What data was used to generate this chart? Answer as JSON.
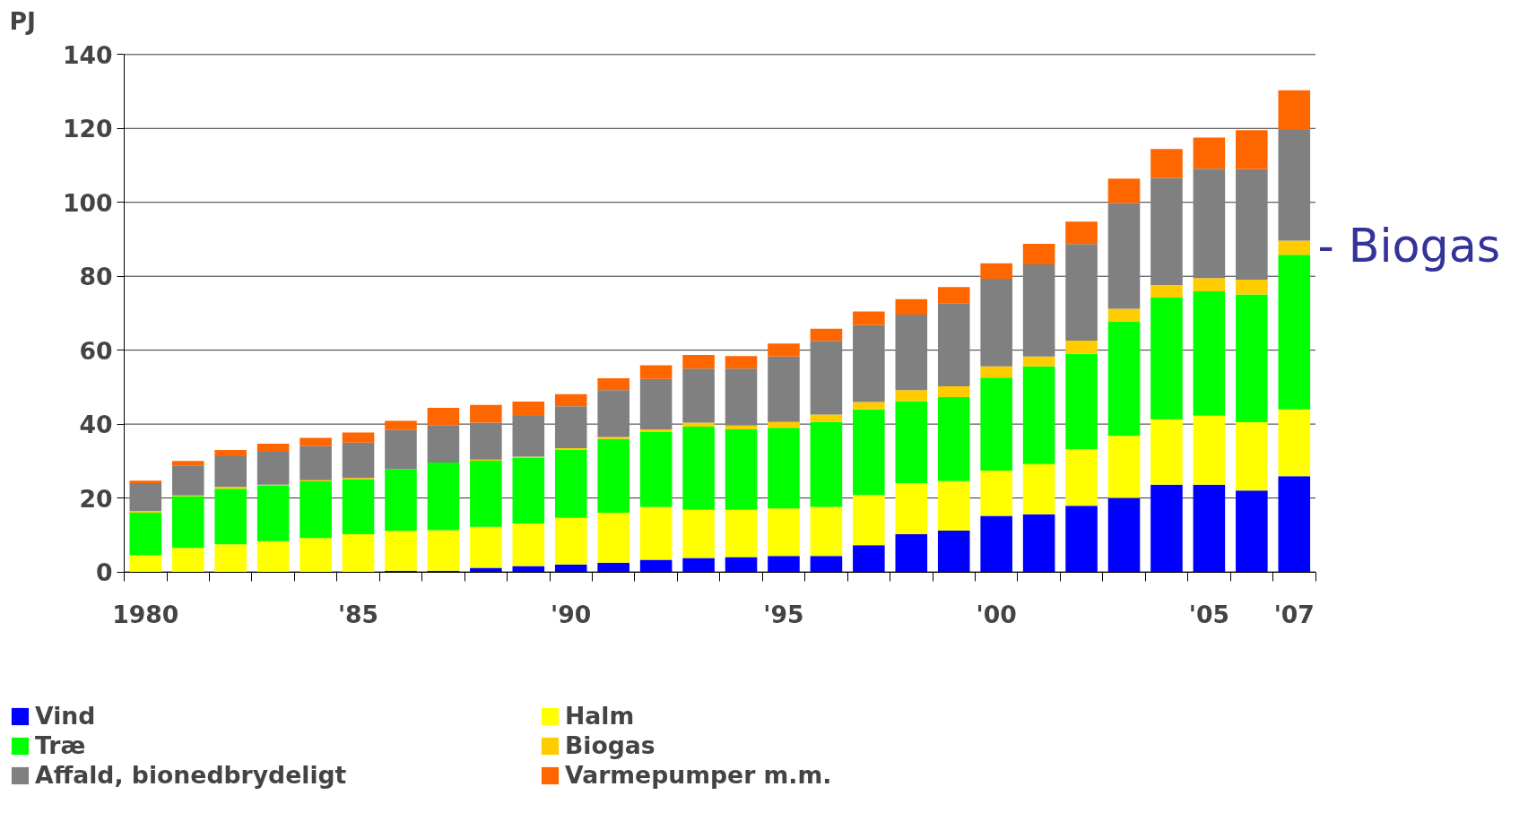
{
  "chart_data": {
    "type": "bar",
    "stacked": true,
    "ylabel": "PJ",
    "categories": [
      "1980",
      null,
      null,
      null,
      null,
      "'85",
      null,
      null,
      null,
      null,
      "'90",
      null,
      null,
      null,
      null,
      "'95",
      null,
      null,
      null,
      null,
      "'00",
      null,
      null,
      null,
      null,
      "'05",
      null,
      "'07"
    ],
    "series": [
      {
        "name": "Vind",
        "color": "#0000ff",
        "values": [
          0,
          0,
          0,
          0,
          0,
          0,
          0.3,
          0.3,
          1.1,
          1.6,
          2,
          2.5,
          3.3,
          3.8,
          4,
          4.3,
          4.3,
          7.2,
          10.2,
          11.2,
          15.2,
          15.6,
          17.9,
          20,
          23.6,
          23.6,
          22,
          25.9
        ]
      },
      {
        "name": "Halm",
        "color": "#ffff00",
        "values": [
          4.5,
          6.5,
          7.5,
          8.3,
          9.2,
          10.2,
          10.8,
          11,
          11.1,
          11.5,
          12.6,
          13.5,
          14.3,
          13,
          12.8,
          12.9,
          13.3,
          13.6,
          13.8,
          13.4,
          12.2,
          13.6,
          15.3,
          16.8,
          17.7,
          18.7,
          18.5,
          18.1
        ]
      },
      {
        "name": "Træ",
        "color": "#00ff00",
        "values": [
          11.5,
          14,
          15,
          15,
          15.3,
          14.8,
          16.7,
          18.3,
          17.9,
          17.7,
          18.4,
          20,
          20.4,
          22.5,
          21.8,
          21.8,
          23,
          23.2,
          22.2,
          22.7,
          25.2,
          26.4,
          25.8,
          31,
          32.9,
          33.6,
          34.6,
          41.8
        ]
      },
      {
        "name": "Biogas",
        "color": "#ffcc00",
        "values": [
          0.5,
          0.2,
          0.5,
          0.3,
          0.3,
          0.4,
          null,
          null,
          0.3,
          0.4,
          0.5,
          0.5,
          0.6,
          1.1,
          1,
          1.6,
          2,
          2,
          3,
          2.9,
          3,
          2.7,
          3.6,
          3.4,
          3.4,
          3.6,
          4,
          3.8
        ]
      },
      {
        "name": "Affald, bionedbrydeligt",
        "color": "#808080",
        "values": [
          7.5,
          8.1,
          8.3,
          8.9,
          9.2,
          9.6,
          10.6,
          10.1,
          10,
          11,
          11.3,
          12.7,
          13.6,
          14.6,
          15.4,
          17.7,
          19.9,
          20.8,
          20.4,
          22.5,
          23.7,
          24.9,
          26.1,
          28.6,
          29,
          29.6,
          29.9,
          30
        ]
      },
      {
        "name": "Varmepumper m.m.",
        "color": "#ff6600",
        "values": [
          0.7,
          1.2,
          1.7,
          2.2,
          2.3,
          2.7,
          2.5,
          4.7,
          4.8,
          3.9,
          3.3,
          3.2,
          3.7,
          3.7,
          3.4,
          3.5,
          3.3,
          3.7,
          4.2,
          4.4,
          4.2,
          5.6,
          6.1,
          6.6,
          7.8,
          8.4,
          10.5,
          10.7
        ]
      }
    ],
    "ylim": [
      0,
      140
    ],
    "yticks": [
      0,
      20,
      40,
      60,
      80,
      100,
      120,
      140
    ],
    "grid": "y",
    "legend": "bottom",
    "annotations": [
      "- Biogas"
    ]
  }
}
